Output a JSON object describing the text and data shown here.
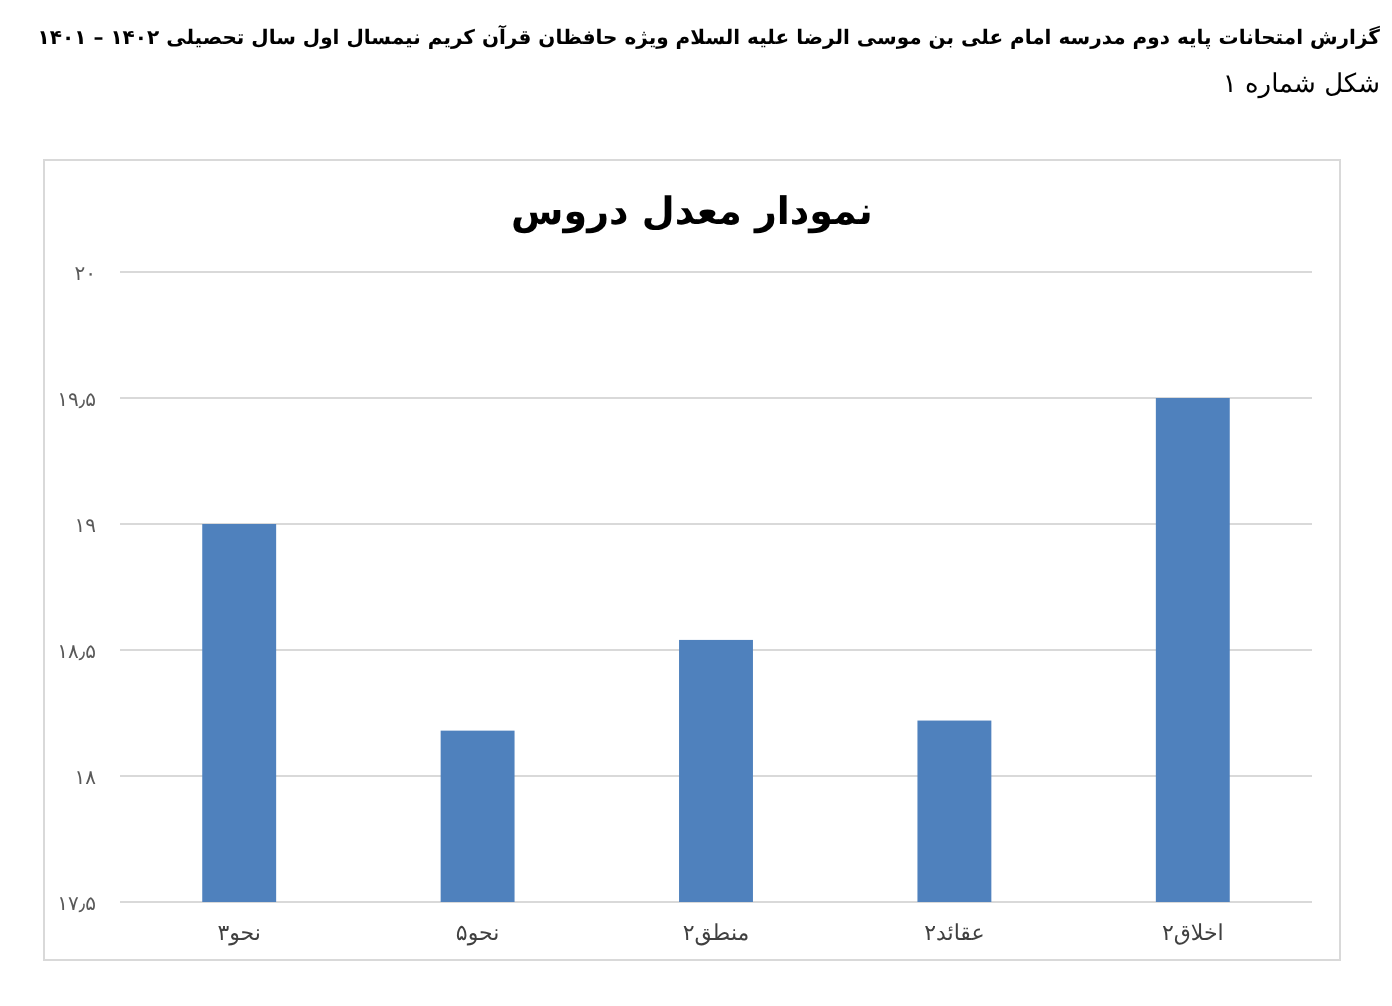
{
  "chart_data": {
    "type": "bar",
    "title": "نمودار معدل دروس",
    "annotations": [
      "گزارش امتحانات پایه دوم مدرسه امام علی بن موسی الرضا علیه السلام ویژه حافظان قرآن کریم نیمسال اول سال تحصیلی ۱۴۰۲ – ۱۴۰۱",
      "شکل شماره ۱"
    ],
    "categories": [
      "نحو۳",
      "نحو۵",
      "منطق۲",
      "عقائد۲",
      "اخلاق۲"
    ],
    "values": [
      19.0,
      18.18,
      18.54,
      18.22,
      19.5
    ],
    "color": "#4f81bd",
    "ylim": [
      17.5,
      20
    ],
    "yticks": [
      {
        "value": 17.5,
        "label": "۱۷٫۵"
      },
      {
        "value": 18,
        "label": "۱۸"
      },
      {
        "value": 18.5,
        "label": "۱۸٫۵"
      },
      {
        "value": 19,
        "label": "۱۹"
      },
      {
        "value": 19.5,
        "label": "۱۹٫۵"
      },
      {
        "value": 20,
        "label": "۲۰"
      }
    ],
    "grid": "y"
  }
}
